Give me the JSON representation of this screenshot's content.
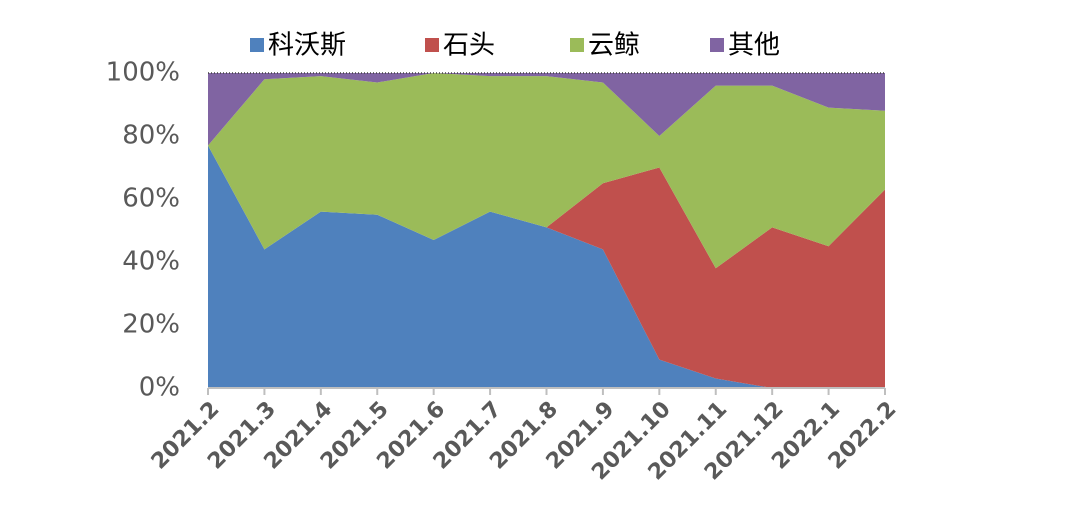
{
  "chart_data": {
    "type": "stacked_area",
    "categories": [
      "2021.2",
      "2021.3",
      "2021.4",
      "2021.5",
      "2021.6",
      "2021.7",
      "2021.8",
      "2021.9",
      "2021.10",
      "2021.11",
      "2021.12",
      "2022.1",
      "2022.2"
    ],
    "series": [
      {
        "name": "科沃斯",
        "color": "#4f81bd",
        "values": [
          77,
          44,
          56,
          55,
          47,
          56,
          51,
          44,
          9,
          3,
          0,
          0,
          0
        ]
      },
      {
        "name": "石头",
        "color": "#c0504d",
        "values": [
          0,
          0,
          0,
          0,
          0,
          0,
          0,
          21,
          61,
          35,
          51,
          45,
          63
        ]
      },
      {
        "name": "云鲸",
        "color": "#9bbb59",
        "values": [
          0,
          54,
          43,
          42,
          53,
          43,
          48,
          32,
          10,
          58,
          45,
          44,
          25
        ]
      },
      {
        "name": "其他",
        "color": "#8064a2",
        "values": [
          23,
          2,
          1,
          3,
          0,
          1,
          1,
          3,
          20,
          4,
          4,
          11,
          12
        ]
      }
    ],
    "ylim": [
      0,
      100
    ],
    "yticks": [
      {
        "value": 0,
        "label": "0%"
      },
      {
        "value": 20,
        "label": "20%"
      },
      {
        "value": 40,
        "label": "40%"
      },
      {
        "value": 60,
        "label": "60%"
      },
      {
        "value": 80,
        "label": "80%"
      },
      {
        "value": 100,
        "label": "100%"
      }
    ],
    "legend": "top"
  }
}
